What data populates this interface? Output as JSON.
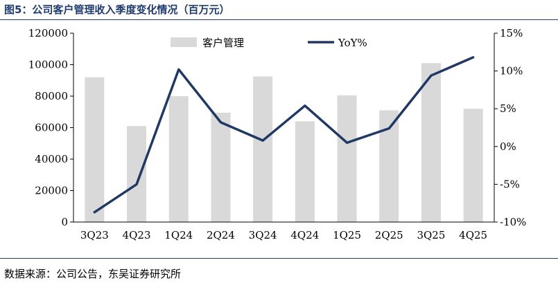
{
  "header": {
    "title": "图5：公司客户管理收入季度变化情况（百万元）"
  },
  "footer": {
    "source": "数据来源：公司公告，东吴证券研究所"
  },
  "chart_data": {
    "type": "bar+line",
    "categories": [
      "3Q23",
      "4Q23",
      "1Q24",
      "2Q24",
      "3Q24",
      "4Q24",
      "1Q25",
      "2Q25",
      "3Q25",
      "4Q25"
    ],
    "series": [
      {
        "name": "客户管理",
        "type": "bar",
        "axis": "left",
        "values": [
          92000,
          61000,
          80000,
          69500,
          92500,
          64000,
          80500,
          71000,
          101000,
          72000
        ],
        "color": "#d9d9d9"
      },
      {
        "name": "YoY%",
        "type": "line",
        "axis": "right",
        "values": [
          -8.7,
          -5.0,
          10.2,
          3.2,
          0.8,
          5.4,
          0.5,
          2.4,
          9.4,
          11.8
        ],
        "color": "#1f3864"
      }
    ],
    "y_left": {
      "min": 0,
      "max": 120000,
      "ticks": [
        "0",
        "20000",
        "40000",
        "60000",
        "80000",
        "100000",
        "120000"
      ]
    },
    "y_right": {
      "min": -10,
      "max": 15,
      "ticks": [
        "-10%",
        "-5%",
        "0%",
        "5%",
        "10%",
        "15%"
      ]
    },
    "legend": {
      "position": "top-inside"
    },
    "grid": false
  }
}
